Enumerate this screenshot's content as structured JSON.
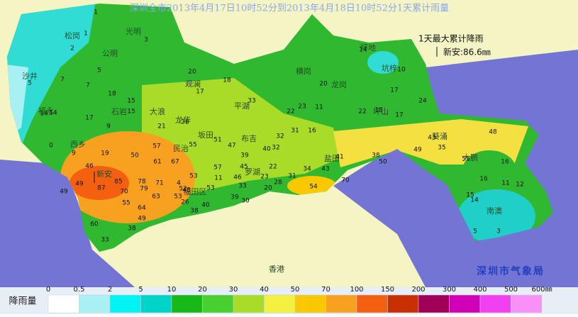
{
  "title": "深圳全市2013年4月17日10时52分到2013年4月18日10时52分1天累计雨量",
  "annotation": {
    "heading": "1天最大累计降雨",
    "maximum": "新安:86.6㎜"
  },
  "places": [
    "松岗",
    "光明",
    "公明",
    "沙井",
    "福永",
    "西乡",
    "石岩",
    "观澜",
    "大浪",
    "龙华",
    "坂田",
    "民治",
    "布吉",
    "平湖",
    "横岗",
    "龙岗",
    "坪地",
    "坑梓",
    "坪山",
    "葵涌",
    "大鹏",
    "南澳",
    "盐田",
    "罗湖",
    "福田区",
    "新安",
    "香港"
  ],
  "stations": [
    1,
    1,
    2,
    3,
    5,
    7,
    7,
    5,
    14,
    17,
    14,
    9,
    18,
    15,
    15,
    20,
    17,
    18,
    33,
    21,
    38,
    55,
    57,
    50,
    61,
    67,
    51,
    47,
    39,
    40,
    32,
    32,
    31,
    22,
    23,
    11,
    16,
    20,
    14,
    10,
    17,
    24,
    22,
    18,
    17,
    43,
    48,
    35,
    55,
    16,
    49,
    38,
    50,
    43,
    34,
    31,
    22,
    23,
    28,
    54,
    70,
    41,
    53,
    11,
    57,
    46,
    53,
    33,
    30,
    39,
    20,
    45,
    4,
    48,
    52,
    26,
    38,
    40,
    53,
    71,
    79,
    78,
    70,
    85,
    87,
    49,
    46,
    19,
    9,
    0,
    63,
    55,
    64,
    49,
    60,
    38,
    33,
    49,
    16,
    11,
    12,
    15,
    14,
    5,
    3
  ],
  "credit": "深圳市气象局",
  "legend": {
    "label": "降雨量",
    "ticks": [
      "0",
      "0.5",
      "2",
      "5",
      "10",
      "20",
      "30",
      "40",
      "50",
      "70",
      "100",
      "150",
      "200",
      "300",
      "400",
      "500",
      "600㎜"
    ],
    "colors": [
      "#ffffff",
      "#a8f0f4",
      "#00f4f4",
      "#00d4c8",
      "#18b818",
      "#48d030",
      "#a8dc28",
      "#f4f040",
      "#f8c800",
      "#f8a020",
      "#f46010",
      "#c83000",
      "#a00058",
      "#d000b8",
      "#f040f0",
      "#f890f8"
    ]
  }
}
